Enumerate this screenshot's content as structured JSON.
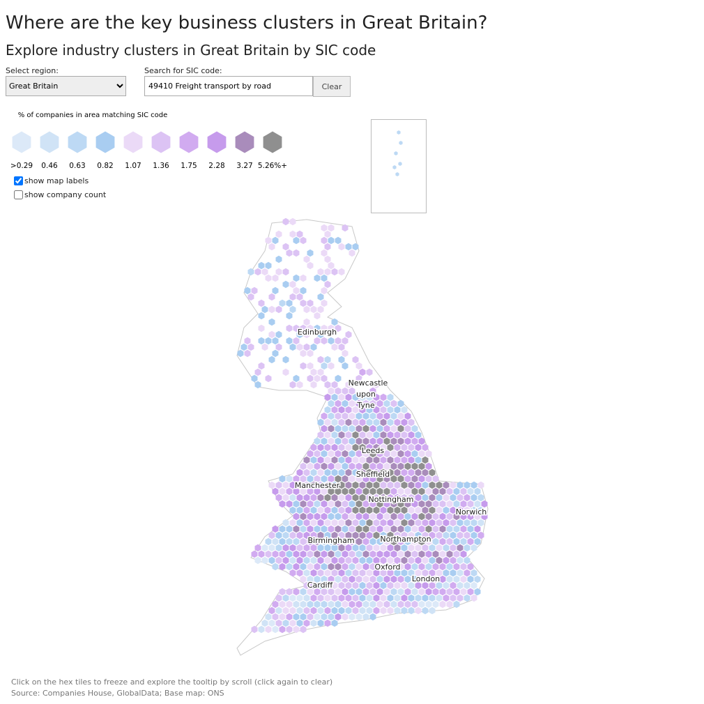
{
  "header": {
    "title": "Where are the key business clusters in Great Britain?",
    "subtitle": "Explore industry clusters in Great Britain by SIC code"
  },
  "controls": {
    "region_label": "Select region:",
    "region": "Great Britain",
    "search_label": "Search for SIC code:",
    "search_value": "49410 Freight transport by road",
    "clear_button": "Clear",
    "show_labels": "show map labels",
    "show_count": "show company count"
  },
  "legend": {
    "title": "% of companies in area matching SIC code",
    "items": [
      {
        "label": ">0.29",
        "color": "#dce9f8"
      },
      {
        "label": "0.46",
        "color": "#d0e3f6"
      },
      {
        "label": "0.63",
        "color": "#bdd9f4"
      },
      {
        "label": "0.82",
        "color": "#a9cdf1"
      },
      {
        "label": "1.07",
        "color": "#ebdaf7"
      },
      {
        "label": "1.36",
        "color": "#dcc3f4"
      },
      {
        "label": "1.75",
        "color": "#d1abf0"
      },
      {
        "label": "2.28",
        "color": "#c69bec"
      },
      {
        "label": "3.27",
        "color": "#a98cbb"
      },
      {
        "label": "5.26%+",
        "color": "#8f8f8f"
      }
    ]
  },
  "map_labels": [
    "Edinburgh",
    "Newcastle",
    "upon",
    "Tyne",
    "Leeds",
    "Sheffield",
    "Manchester",
    "Nottingham",
    "Norwich",
    "Birmingham",
    "Northampton",
    "Oxford",
    "London",
    "Cardiff"
  ],
  "footer": {
    "note": "Click on the hex tiles to freeze and explore the tooltip by scroll (click again to clear)",
    "source": "Source: Companies House, GlobalData; Base map: ONS"
  }
}
